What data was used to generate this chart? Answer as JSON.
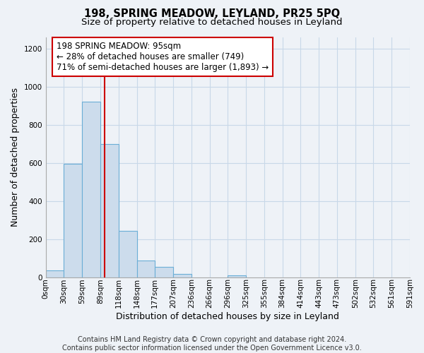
{
  "title": "198, SPRING MEADOW, LEYLAND, PR25 5PQ",
  "subtitle": "Size of property relative to detached houses in Leyland",
  "xlabel": "Distribution of detached houses by size in Leyland",
  "ylabel": "Number of detached properties",
  "bar_edges": [
    0,
    29.5,
    59,
    88.5,
    118,
    147.5,
    177,
    206.5,
    236,
    265.5,
    295,
    324.5,
    354,
    383.5,
    413,
    442.5,
    472,
    501.5,
    531,
    560.5,
    590
  ],
  "bar_heights": [
    35,
    595,
    920,
    700,
    245,
    90,
    55,
    20,
    0,
    0,
    10,
    0,
    0,
    0,
    0,
    0,
    0,
    0,
    0,
    0
  ],
  "tick_labels": [
    "0sqm",
    "30sqm",
    "59sqm",
    "89sqm",
    "118sqm",
    "148sqm",
    "177sqm",
    "207sqm",
    "236sqm",
    "266sqm",
    "296sqm",
    "325sqm",
    "355sqm",
    "384sqm",
    "414sqm",
    "443sqm",
    "473sqm",
    "502sqm",
    "532sqm",
    "561sqm",
    "591sqm"
  ],
  "bar_color": "#ccdcec",
  "bar_edge_color": "#6baed6",
  "property_line_x": 95,
  "property_line_color": "#cc0000",
  "annotation_line1": "198 SPRING MEADOW: 95sqm",
  "annotation_line2": "← 28% of detached houses are smaller (749)",
  "annotation_line3": "71% of semi-detached houses are larger (1,893) →",
  "ylim": [
    0,
    1260
  ],
  "yticks": [
    0,
    200,
    400,
    600,
    800,
    1000,
    1200
  ],
  "grid_color": "#c8d8e8",
  "background_color": "#eef2f7",
  "plot_bg_color": "#eef2f7",
  "footer_text": "Contains HM Land Registry data © Crown copyright and database right 2024.\nContains public sector information licensed under the Open Government Licence v3.0.",
  "title_fontsize": 10.5,
  "subtitle_fontsize": 9.5,
  "axis_label_fontsize": 9,
  "tick_fontsize": 7.5,
  "annotation_fontsize": 8.5,
  "footer_fontsize": 7
}
